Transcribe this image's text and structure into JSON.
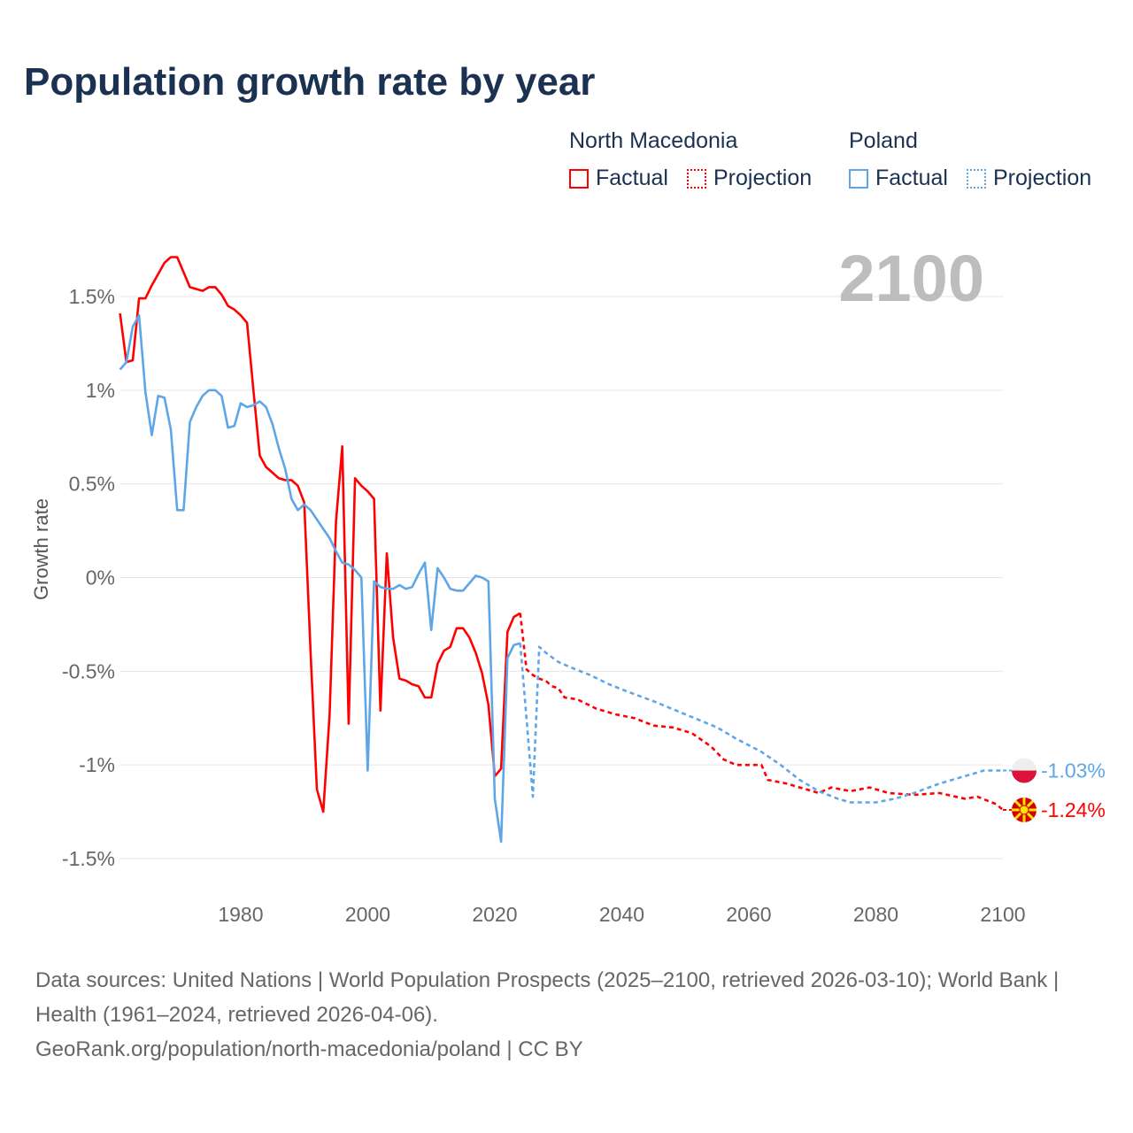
{
  "title": "Population growth rate by year",
  "legend": {
    "groups": [
      {
        "name": "North Macedonia",
        "factual": "Factual",
        "projection": "Projection",
        "color": "#ff0000"
      },
      {
        "name": "Poland",
        "factual": "Factual",
        "projection": "Projection",
        "color": "#5ea6e8"
      }
    ]
  },
  "current_year": "2100",
  "footer": {
    "sources": "Data sources: United Nations | World Population Prospects (2025–2100, retrieved 2026-03-10); World Bank | Health (1961–2024, retrieved 2026-04-06).",
    "credit": "GeoRank.org/population/north-macedonia/poland | CC BY"
  },
  "chart_data": {
    "type": "line",
    "title": "Population growth rate by year",
    "xlabel": "",
    "ylabel": "Growth rate",
    "xlim": [
      1961,
      2100
    ],
    "ylim": [
      -1.5,
      1.5
    ],
    "x_ticks": [
      1980,
      2000,
      2020,
      2040,
      2060,
      2080,
      2100
    ],
    "y_ticks": [
      {
        "v": 1.5,
        "label": "1.5%"
      },
      {
        "v": 1,
        "label": "1%"
      },
      {
        "v": 0.5,
        "label": "0.5%"
      },
      {
        "v": 0,
        "label": "0%"
      },
      {
        "v": -0.5,
        "label": "-0.5%"
      },
      {
        "v": -1,
        "label": "-1%"
      },
      {
        "v": -1.5,
        "label": "-1.5%"
      }
    ],
    "grid": true,
    "series": [
      {
        "name": "North Macedonia",
        "kind": "factual",
        "color": "#ff0000",
        "points": [
          [
            1961,
            1.41
          ],
          [
            1962,
            1.15
          ],
          [
            1963,
            1.16
          ],
          [
            1964,
            1.49
          ],
          [
            1965,
            1.49
          ],
          [
            1966,
            1.56
          ],
          [
            1967,
            1.62
          ],
          [
            1968,
            1.68
          ],
          [
            1969,
            1.71
          ],
          [
            1970,
            1.71
          ],
          [
            1971,
            1.63
          ],
          [
            1972,
            1.55
          ],
          [
            1973,
            1.54
          ],
          [
            1974,
            1.53
          ],
          [
            1975,
            1.55
          ],
          [
            1976,
            1.55
          ],
          [
            1977,
            1.51
          ],
          [
            1978,
            1.45
          ],
          [
            1979,
            1.43
          ],
          [
            1980,
            1.4
          ],
          [
            1981,
            1.36
          ],
          [
            1982,
            1.0
          ],
          [
            1983,
            0.65
          ],
          [
            1984,
            0.59
          ],
          [
            1985,
            0.56
          ],
          [
            1986,
            0.53
          ],
          [
            1987,
            0.52
          ],
          [
            1988,
            0.52
          ],
          [
            1989,
            0.49
          ],
          [
            1990,
            0.4
          ],
          [
            1991,
            -0.4
          ],
          [
            1992,
            -1.13
          ],
          [
            1993,
            -1.25
          ],
          [
            1994,
            -0.73
          ],
          [
            1995,
            0.3
          ],
          [
            1996,
            0.7
          ],
          [
            1997,
            -0.78
          ],
          [
            1998,
            0.53
          ],
          [
            1999,
            0.49
          ],
          [
            2000,
            0.46
          ],
          [
            2001,
            0.42
          ],
          [
            2002,
            -0.71
          ],
          [
            2003,
            0.13
          ],
          [
            2004,
            -0.32
          ],
          [
            2005,
            -0.54
          ],
          [
            2006,
            -0.55
          ],
          [
            2007,
            -0.57
          ],
          [
            2008,
            -0.58
          ],
          [
            2009,
            -0.64
          ],
          [
            2010,
            -0.64
          ],
          [
            2011,
            -0.46
          ],
          [
            2012,
            -0.39
          ],
          [
            2013,
            -0.37
          ],
          [
            2014,
            -0.27
          ],
          [
            2015,
            -0.27
          ],
          [
            2016,
            -0.32
          ],
          [
            2017,
            -0.4
          ],
          [
            2018,
            -0.51
          ],
          [
            2019,
            -0.68
          ],
          [
            2020,
            -1.06
          ],
          [
            2021,
            -1.02
          ],
          [
            2022,
            -0.29
          ],
          [
            2023,
            -0.21
          ],
          [
            2024,
            -0.19
          ]
        ]
      },
      {
        "name": "North Macedonia",
        "kind": "projection",
        "color": "#ff0000",
        "points": [
          [
            2024,
            -0.19
          ],
          [
            2025,
            -0.49
          ],
          [
            2026,
            -0.52
          ],
          [
            2027,
            -0.54
          ],
          [
            2028,
            -0.55
          ],
          [
            2029,
            -0.58
          ],
          [
            2030,
            -0.59
          ],
          [
            2031,
            -0.64
          ],
          [
            2033,
            -0.65
          ],
          [
            2036,
            -0.7
          ],
          [
            2039,
            -0.73
          ],
          [
            2042,
            -0.75
          ],
          [
            2045,
            -0.79
          ],
          [
            2048,
            -0.8
          ],
          [
            2051,
            -0.83
          ],
          [
            2054,
            -0.9
          ],
          [
            2056,
            -0.97
          ],
          [
            2058,
            -1.0
          ],
          [
            2062,
            -1.0
          ],
          [
            2063,
            -1.08
          ],
          [
            2066,
            -1.1
          ],
          [
            2068,
            -1.12
          ],
          [
            2071,
            -1.15
          ],
          [
            2073,
            -1.12
          ],
          [
            2076,
            -1.14
          ],
          [
            2079,
            -1.12
          ],
          [
            2082,
            -1.15
          ],
          [
            2086,
            -1.16
          ],
          [
            2090,
            -1.15
          ],
          [
            2094,
            -1.18
          ],
          [
            2096,
            -1.17
          ],
          [
            2099,
            -1.21
          ],
          [
            2100,
            -1.24
          ]
        ]
      },
      {
        "name": "Poland",
        "kind": "factual",
        "color": "#5ea6e8",
        "points": [
          [
            1961,
            1.11
          ],
          [
            1962,
            1.15
          ],
          [
            1963,
            1.34
          ],
          [
            1964,
            1.4
          ],
          [
            1965,
            0.99
          ],
          [
            1966,
            0.76
          ],
          [
            1967,
            0.97
          ],
          [
            1968,
            0.96
          ],
          [
            1969,
            0.79
          ],
          [
            1970,
            0.36
          ],
          [
            1971,
            0.36
          ],
          [
            1972,
            0.83
          ],
          [
            1973,
            0.91
          ],
          [
            1974,
            0.97
          ],
          [
            1975,
            1.0
          ],
          [
            1976,
            1.0
          ],
          [
            1977,
            0.97
          ],
          [
            1978,
            0.8
          ],
          [
            1979,
            0.81
          ],
          [
            1980,
            0.93
          ],
          [
            1981,
            0.91
          ],
          [
            1982,
            0.92
          ],
          [
            1983,
            0.94
          ],
          [
            1984,
            0.91
          ],
          [
            1985,
            0.82
          ],
          [
            1986,
            0.69
          ],
          [
            1987,
            0.58
          ],
          [
            1988,
            0.42
          ],
          [
            1989,
            0.36
          ],
          [
            1990,
            0.39
          ],
          [
            1991,
            0.36
          ],
          [
            1992,
            0.31
          ],
          [
            1993,
            0.26
          ],
          [
            1994,
            0.21
          ],
          [
            1995,
            0.14
          ],
          [
            1996,
            0.08
          ],
          [
            1997,
            0.07
          ],
          [
            1998,
            0.04
          ],
          [
            1999,
            0.0
          ],
          [
            2000,
            -1.03
          ],
          [
            2001,
            -0.02
          ],
          [
            2002,
            -0.05
          ],
          [
            2003,
            -0.06
          ],
          [
            2004,
            -0.06
          ],
          [
            2005,
            -0.04
          ],
          [
            2006,
            -0.06
          ],
          [
            2007,
            -0.05
          ],
          [
            2008,
            0.02
          ],
          [
            2009,
            0.08
          ],
          [
            2010,
            -0.28
          ],
          [
            2011,
            0.05
          ],
          [
            2012,
            0.0
          ],
          [
            2013,
            -0.06
          ],
          [
            2014,
            -0.07
          ],
          [
            2015,
            -0.07
          ],
          [
            2016,
            -0.03
          ],
          [
            2017,
            0.01
          ],
          [
            2018,
            0.0
          ],
          [
            2019,
            -0.02
          ],
          [
            2020,
            -1.18
          ],
          [
            2021,
            -1.41
          ],
          [
            2022,
            -0.43
          ],
          [
            2023,
            -0.36
          ],
          [
            2024,
            -0.35
          ]
        ]
      },
      {
        "name": "Poland",
        "kind": "projection",
        "color": "#5ea6e8",
        "points": [
          [
            2024,
            -0.35
          ],
          [
            2025,
            -0.75
          ],
          [
            2026,
            -1.17
          ],
          [
            2027,
            -0.37
          ],
          [
            2028,
            -0.4
          ],
          [
            2030,
            -0.45
          ],
          [
            2032,
            -0.48
          ],
          [
            2035,
            -0.52
          ],
          [
            2038,
            -0.57
          ],
          [
            2041,
            -0.61
          ],
          [
            2045,
            -0.66
          ],
          [
            2050,
            -0.73
          ],
          [
            2055,
            -0.8
          ],
          [
            2058,
            -0.86
          ],
          [
            2062,
            -0.93
          ],
          [
            2065,
            -1.0
          ],
          [
            2068,
            -1.08
          ],
          [
            2071,
            -1.14
          ],
          [
            2074,
            -1.18
          ],
          [
            2076,
            -1.2
          ],
          [
            2080,
            -1.2
          ],
          [
            2083,
            -1.18
          ],
          [
            2086,
            -1.15
          ],
          [
            2090,
            -1.1
          ],
          [
            2095,
            -1.05
          ],
          [
            2097,
            -1.03
          ],
          [
            2100,
            -1.03
          ]
        ]
      }
    ],
    "end_labels": [
      {
        "country": "Poland",
        "label": "-1.03%",
        "value": -1.03,
        "color": "#5ea6e8"
      },
      {
        "country": "North Macedonia",
        "label": "-1.24%",
        "value": -1.24,
        "color": "#ff0000"
      }
    ]
  }
}
